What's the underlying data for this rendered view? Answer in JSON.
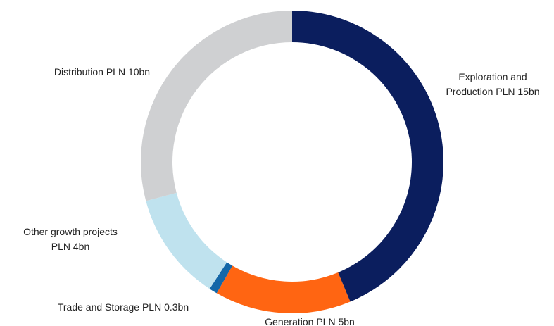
{
  "chart_data": {
    "type": "donut",
    "values": [
      15,
      5,
      0.3,
      4,
      10
    ],
    "value_labels": [
      [
        "Exploration and",
        "Production PLN 15bn"
      ],
      [
        "Generation PLN 5bn"
      ],
      [
        "Trade and Storage PLN 0.3bn"
      ],
      [
        "Other growth projects",
        "PLN 4bn"
      ],
      [
        "Distribution PLN 10bn"
      ]
    ],
    "colors": [
      "#0b1e5e",
      "#ff6512",
      "#1467a8",
      "#bfe2ee",
      "#cfd0d2"
    ]
  }
}
